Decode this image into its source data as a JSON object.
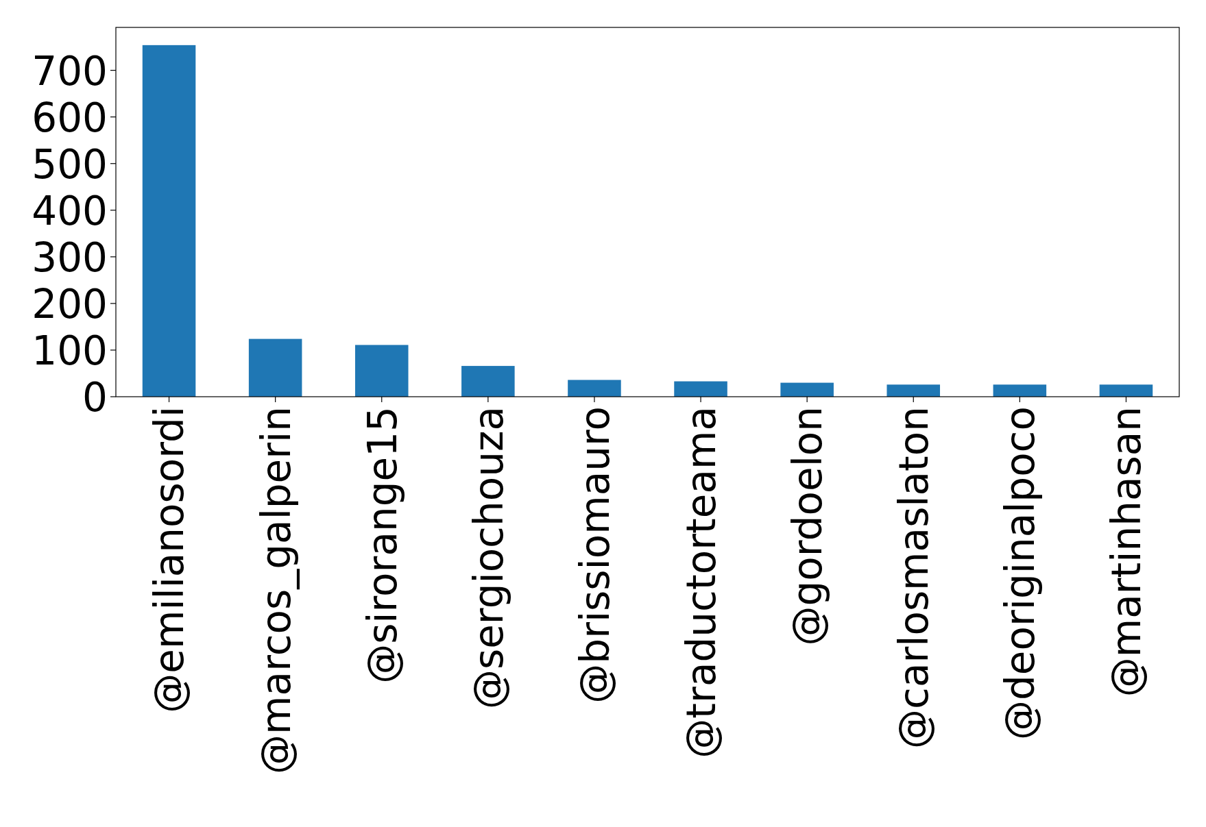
{
  "chart_data": {
    "type": "bar",
    "categories": [
      "@emilianosordi",
      "@marcos_galperin",
      "@sirorange15",
      "@sergiochouza",
      "@brissiomauro",
      "@traductorteama",
      "@gordoelon",
      "@carlosmaslaton",
      "@deoriginalpoco",
      "@martinhasan"
    ],
    "values": [
      754,
      124,
      111,
      66,
      36,
      33,
      30,
      26,
      26,
      26
    ],
    "color": "#1f77b4",
    "ylim": [
      0,
      792
    ],
    "yticks": [
      0,
      100,
      200,
      300,
      400,
      500,
      600,
      700
    ],
    "grid": false
  }
}
